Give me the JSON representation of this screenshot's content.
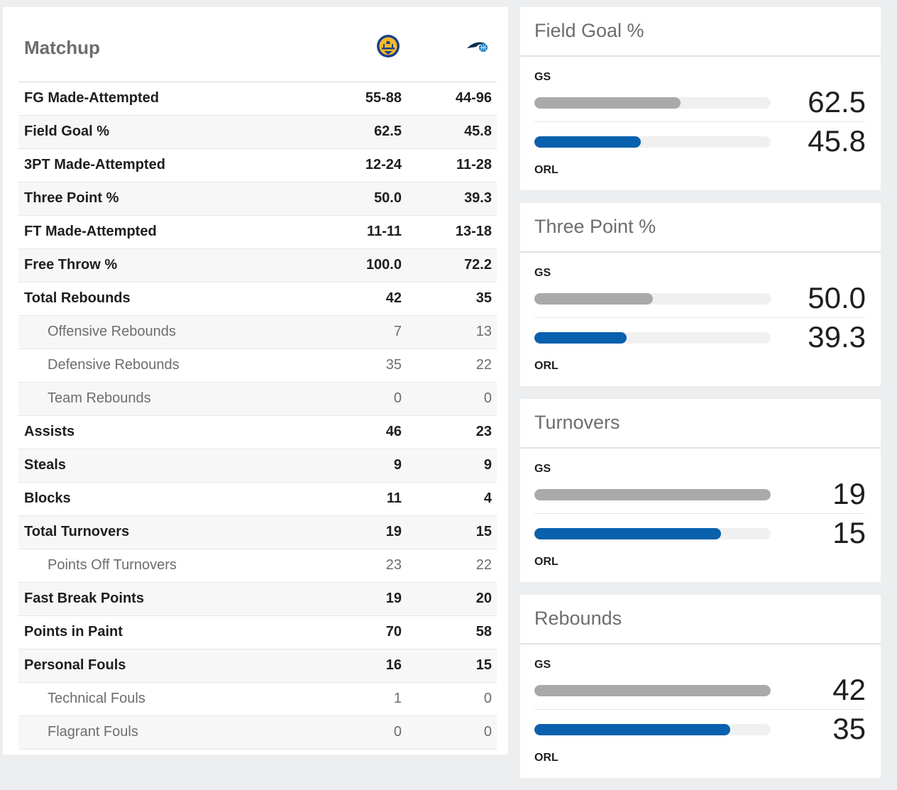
{
  "matchup": {
    "title": "Matchup",
    "team_logos": [
      "warriors-logo",
      "magic-logo"
    ],
    "rows": [
      {
        "label": "FG Made-Attempted",
        "gs": "55-88",
        "orl": "44-96",
        "sub": false
      },
      {
        "label": "Field Goal %",
        "gs": "62.5",
        "orl": "45.8",
        "sub": false
      },
      {
        "label": "3PT Made-Attempted",
        "gs": "12-24",
        "orl": "11-28",
        "sub": false
      },
      {
        "label": "Three Point %",
        "gs": "50.0",
        "orl": "39.3",
        "sub": false
      },
      {
        "label": "FT Made-Attempted",
        "gs": "11-11",
        "orl": "13-18",
        "sub": false
      },
      {
        "label": "Free Throw %",
        "gs": "100.0",
        "orl": "72.2",
        "sub": false
      },
      {
        "label": "Total Rebounds",
        "gs": "42",
        "orl": "35",
        "sub": false
      },
      {
        "label": "Offensive Rebounds",
        "gs": "7",
        "orl": "13",
        "sub": true
      },
      {
        "label": "Defensive Rebounds",
        "gs": "35",
        "orl": "22",
        "sub": true
      },
      {
        "label": "Team Rebounds",
        "gs": "0",
        "orl": "0",
        "sub": true
      },
      {
        "label": "Assists",
        "gs": "46",
        "orl": "23",
        "sub": false
      },
      {
        "label": "Steals",
        "gs": "9",
        "orl": "9",
        "sub": false
      },
      {
        "label": "Blocks",
        "gs": "11",
        "orl": "4",
        "sub": false
      },
      {
        "label": "Total Turnovers",
        "gs": "19",
        "orl": "15",
        "sub": false
      },
      {
        "label": "Points Off Turnovers",
        "gs": "23",
        "orl": "22",
        "sub": true
      },
      {
        "label": "Fast Break Points",
        "gs": "19",
        "orl": "20",
        "sub": false
      },
      {
        "label": "Points in Paint",
        "gs": "70",
        "orl": "58",
        "sub": false
      },
      {
        "label": "Personal Fouls",
        "gs": "16",
        "orl": "15",
        "sub": false
      },
      {
        "label": "Technical Fouls",
        "gs": "1",
        "orl": "0",
        "sub": true
      },
      {
        "label": "Flagrant Fouls",
        "gs": "0",
        "orl": "0",
        "sub": true
      }
    ]
  },
  "comparisons": [
    {
      "title": "Field Goal %",
      "team_a": "GS",
      "team_b": "ORL",
      "value_a": "62.5",
      "value_b": "45.8",
      "fill_a": 0.62,
      "fill_b": 0.45
    },
    {
      "title": "Three Point %",
      "team_a": "GS",
      "team_b": "ORL",
      "value_a": "50.0",
      "value_b": "39.3",
      "fill_a": 0.5,
      "fill_b": 0.39
    },
    {
      "title": "Turnovers",
      "team_a": "GS",
      "team_b": "ORL",
      "value_a": "19",
      "value_b": "15",
      "fill_a": 1.0,
      "fill_b": 0.79
    },
    {
      "title": "Rebounds",
      "team_a": "GS",
      "team_b": "ORL",
      "value_a": "42",
      "value_b": "35",
      "fill_a": 1.0,
      "fill_b": 0.83
    }
  ],
  "colors": {
    "gs_bar": "#a9a9a9",
    "orl_bar": "#0960ac",
    "page_bg": "#edeef0"
  }
}
